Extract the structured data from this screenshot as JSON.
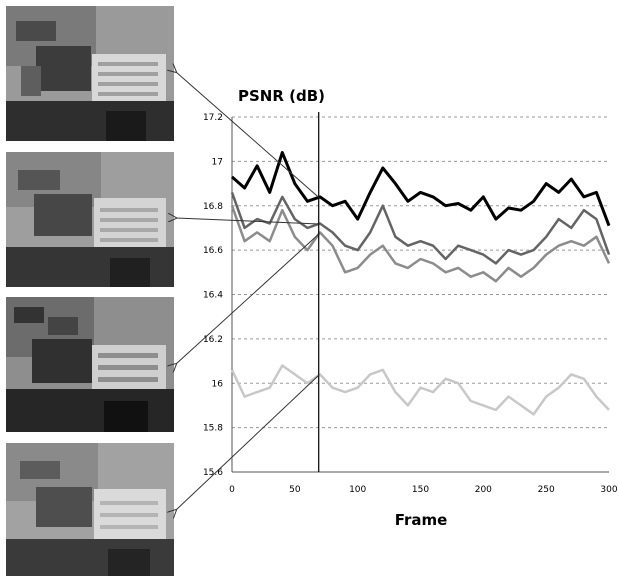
{
  "chart_data": {
    "type": "line",
    "ylabel": "PSNR (dB)",
    "xlabel": "Frame",
    "xlim": [
      0,
      300
    ],
    "ylim": [
      15.6,
      17.2
    ],
    "x_ticks": [
      0,
      50,
      100,
      150,
      200,
      250,
      300
    ],
    "y_ticks": [
      15.6,
      15.8,
      16,
      16.2,
      16.4,
      16.6,
      16.8,
      17,
      17.2
    ],
    "x_tick_labels": [
      "0",
      "50",
      "100",
      "150",
      "200",
      "250",
      "300"
    ],
    "y_tick_labels": [
      "15.6",
      "15.8",
      "16",
      "16.2",
      "16.4",
      "16.6",
      "16.8",
      "17",
      "17.2"
    ],
    "grid": "horizontal dashed",
    "marker_frame": 69,
    "x": [
      0,
      10,
      20,
      30,
      40,
      50,
      60,
      70,
      80,
      90,
      100,
      110,
      120,
      130,
      140,
      150,
      160,
      170,
      180,
      190,
      200,
      210,
      220,
      230,
      240,
      250,
      260,
      270,
      280,
      290,
      300
    ],
    "series": [
      {
        "color": "#000000",
        "values": [
          16.93,
          16.88,
          16.98,
          16.86,
          17.04,
          16.9,
          16.82,
          16.84,
          16.8,
          16.82,
          16.74,
          16.86,
          16.97,
          16.9,
          16.82,
          16.86,
          16.84,
          16.8,
          16.81,
          16.78,
          16.84,
          16.74,
          16.79,
          16.78,
          16.82,
          16.9,
          16.86,
          16.92,
          16.84,
          16.86,
          16.71
        ]
      },
      {
        "color": "#646464",
        "values": [
          16.86,
          16.7,
          16.74,
          16.72,
          16.84,
          16.74,
          16.7,
          16.72,
          16.68,
          16.62,
          16.6,
          16.68,
          16.8,
          16.66,
          16.62,
          16.64,
          16.62,
          16.56,
          16.62,
          16.6,
          16.58,
          16.54,
          16.6,
          16.58,
          16.6,
          16.66,
          16.74,
          16.7,
          16.78,
          16.74,
          16.58
        ]
      },
      {
        "color": "#8c8c8c",
        "values": [
          16.8,
          16.64,
          16.68,
          16.64,
          16.78,
          16.66,
          16.6,
          16.68,
          16.62,
          16.5,
          16.52,
          16.58,
          16.62,
          16.54,
          16.52,
          16.56,
          16.54,
          16.5,
          16.52,
          16.48,
          16.5,
          16.46,
          16.52,
          16.48,
          16.52,
          16.58,
          16.62,
          16.64,
          16.62,
          16.66,
          16.54
        ]
      },
      {
        "color": "#c8c8c8",
        "values": [
          16.06,
          15.94,
          15.96,
          15.98,
          16.08,
          16.04,
          16.0,
          16.04,
          15.98,
          15.96,
          15.98,
          16.04,
          16.06,
          15.96,
          15.9,
          15.98,
          15.96,
          16.02,
          16.0,
          15.92,
          15.9,
          15.88,
          15.94,
          15.9,
          15.86,
          15.94,
          15.98,
          16.04,
          16.02,
          15.94,
          15.88
        ]
      }
    ]
  }
}
